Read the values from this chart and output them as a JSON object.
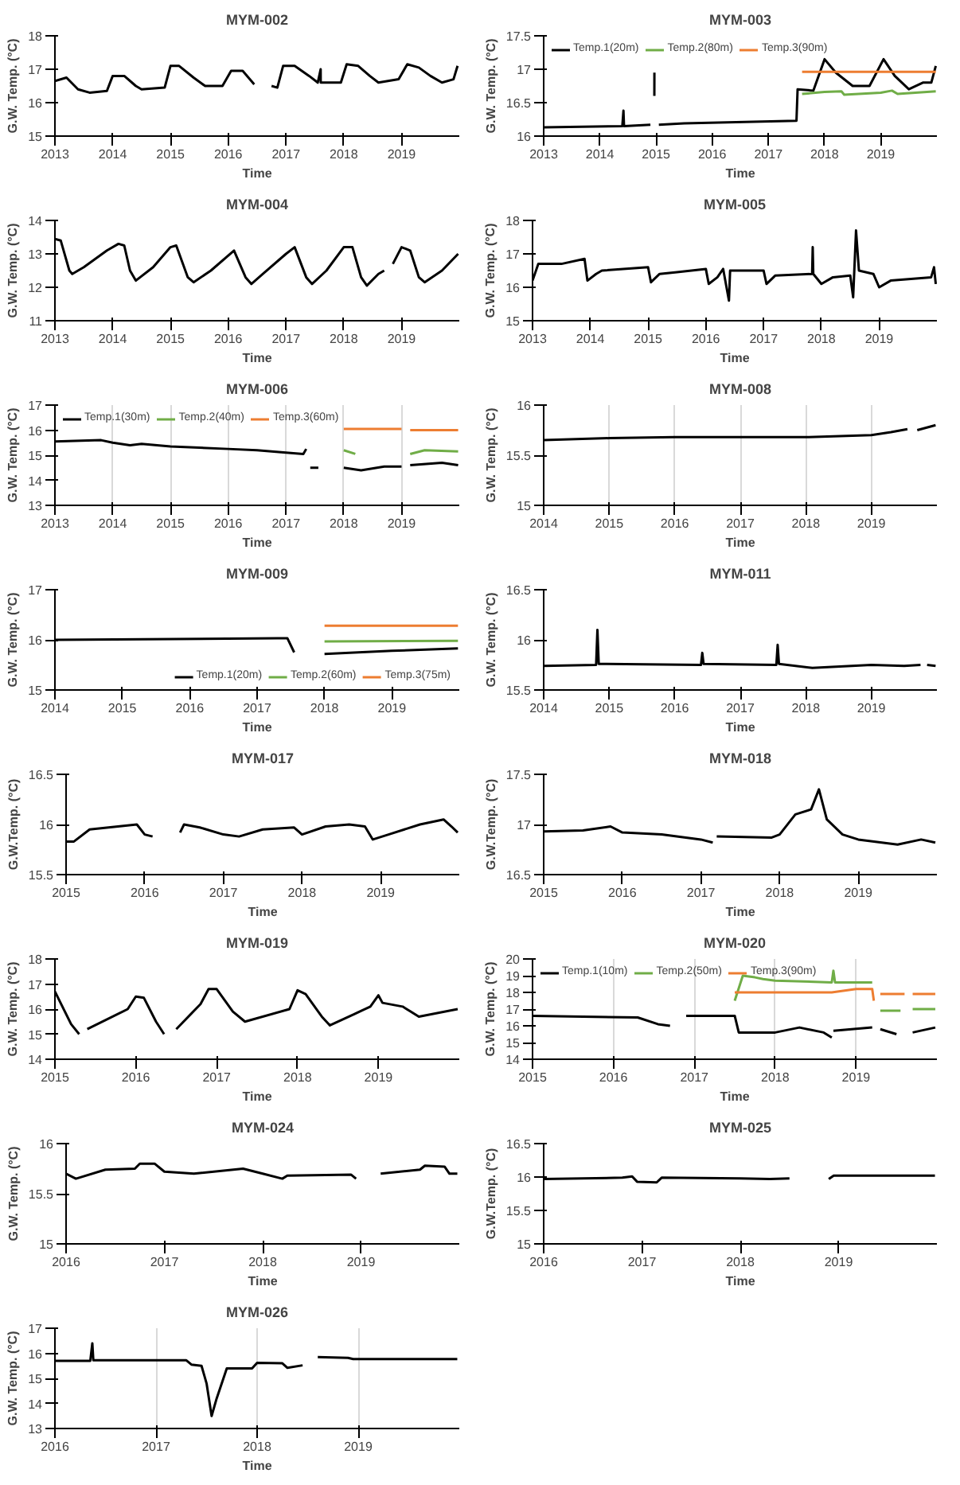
{
  "chart_data": [
    {
      "type": "line",
      "title": "MYM-002",
      "xlabel": "Time",
      "ylabel": "G.W. Temp. (°C)",
      "xlim": [
        2013,
        2020
      ],
      "xticks": [
        2013,
        2014,
        2015,
        2016,
        2017,
        2018,
        2019
      ],
      "ylim": [
        15,
        18
      ],
      "yticks": [
        15,
        16,
        17,
        18
      ],
      "grid": false,
      "series": [
        {
          "color": "#000000",
          "x": [
            2013.0,
            2013.2,
            2013.4,
            2013.6,
            2013.9,
            2014.0,
            2014.2,
            2014.4,
            2014.5,
            2014.9,
            2015.0,
            2015.15,
            2015.4,
            2015.6,
            2015.9,
            2016.05,
            2016.25,
            2016.45,
            2016.6,
            2016.75,
            2016.85,
            2016.95,
            2017.15,
            2017.4,
            2017.55,
            2017.6,
            2017.601,
            2017.61,
            2017.95,
            2018.05,
            2018.25,
            2018.45,
            2018.6,
            2018.95,
            2019.1,
            2019.3,
            2019.5,
            2019.7,
            2019.9,
            2019.97
          ],
          "values": [
            16.65,
            16.75,
            16.4,
            16.3,
            16.35,
            16.8,
            16.8,
            16.5,
            16.4,
            16.45,
            17.1,
            17.1,
            16.75,
            16.5,
            16.5,
            16.95,
            16.95,
            16.55,
            null,
            16.5,
            16.45,
            17.1,
            17.1,
            16.8,
            16.6,
            17.0,
            16.6,
            16.6,
            16.6,
            17.15,
            17.1,
            16.8,
            16.6,
            16.7,
            17.15,
            17.05,
            16.8,
            16.6,
            16.7,
            17.1
          ]
        }
      ]
    },
    {
      "type": "line",
      "title": "MYM-003",
      "xlabel": "Time",
      "ylabel": "G.W. Temp. (°C)",
      "xlim": [
        2013,
        2020
      ],
      "xticks": [
        2013,
        2014,
        2015,
        2016,
        2017,
        2018,
        2019
      ],
      "ylim": [
        16,
        17.5
      ],
      "yticks": [
        16,
        16.5,
        17,
        17.5
      ],
      "grid": false,
      "legend": "top left",
      "series": [
        {
          "name": "Temp.1(20m)",
          "color": "#000000",
          "x": [
            2013.0,
            2014.4,
            2014.42,
            2014.43,
            2014.9,
            2014.93,
            2014.97,
            2014.971,
            2014.99,
            2015.05,
            2015.5,
            2017.5,
            2017.52,
            2017.8,
            2018.0,
            2018.2,
            2018.5,
            2018.8,
            2019.05,
            2019.25,
            2019.5,
            2019.75,
            2019.9,
            2019.98
          ],
          "values": [
            16.13,
            16.15,
            16.38,
            16.15,
            16.17,
            null,
            16.6,
            16.95,
            null,
            16.17,
            16.19,
            16.23,
            16.7,
            16.68,
            17.15,
            16.95,
            16.75,
            16.75,
            17.15,
            16.9,
            16.7,
            16.8,
            16.8,
            17.05
          ]
        },
        {
          "name": "Temp.2(80m)",
          "color": "#70ad47",
          "x": [
            2017.6,
            2018.0,
            2018.3,
            2018.35,
            2019.0,
            2019.2,
            2019.3,
            2019.98
          ],
          "values": [
            16.63,
            16.66,
            16.67,
            16.62,
            16.65,
            16.68,
            16.63,
            16.67
          ]
        },
        {
          "name": "Temp.3(90m)",
          "color": "#ed7d31",
          "x": [
            2017.6,
            2019.98
          ],
          "values": [
            16.96,
            16.96
          ]
        }
      ]
    },
    {
      "type": "line",
      "title": "MYM-004",
      "xlabel": "Time",
      "ylabel": "G.W. Temp. (°C)",
      "xlim": [
        2013,
        2020
      ],
      "xticks": [
        2013,
        2014,
        2015,
        2016,
        2017,
        2018,
        2019
      ],
      "ylim": [
        11,
        14
      ],
      "yticks": [
        11,
        12,
        13,
        14
      ],
      "grid": false,
      "series": [
        {
          "color": "#000000",
          "x": [
            2013.0,
            2013.1,
            2013.25,
            2013.3,
            2013.5,
            2013.9,
            2014.1,
            2014.2,
            2014.3,
            2014.4,
            2014.7,
            2015.0,
            2015.1,
            2015.3,
            2015.4,
            2015.7,
            2016.1,
            2016.3,
            2016.4,
            2016.6,
            2017.0,
            2017.15,
            2017.35,
            2017.45,
            2017.7,
            2018.0,
            2018.15,
            2018.3,
            2018.4,
            2018.6,
            2018.7,
            2018.78,
            2018.85,
            2019.0,
            2019.15,
            2019.3,
            2019.4,
            2019.7,
            2019.98
          ],
          "values": [
            13.45,
            13.4,
            12.5,
            12.4,
            12.6,
            13.1,
            13.3,
            13.25,
            12.5,
            12.2,
            12.6,
            13.2,
            13.25,
            12.3,
            12.15,
            12.5,
            13.1,
            12.3,
            12.1,
            12.4,
            13.0,
            13.2,
            12.3,
            12.1,
            12.5,
            13.2,
            13.2,
            12.3,
            12.05,
            12.4,
            12.5,
            null,
            12.7,
            13.2,
            13.1,
            12.3,
            12.15,
            12.5,
            13.0
          ]
        }
      ]
    },
    {
      "type": "line",
      "title": "MYM-005",
      "xlabel": "Time",
      "ylabel": "G.W. Temp. (°C)",
      "xlim": [
        2013,
        2020
      ],
      "xticks": [
        2013,
        2014,
        2015,
        2016,
        2017,
        2018,
        2019
      ],
      "ylim": [
        15,
        18
      ],
      "yticks": [
        15,
        16,
        17,
        18
      ],
      "grid": false,
      "series": [
        {
          "color": "#000000",
          "x": [
            2013.0,
            2013.1,
            2013.5,
            2013.9,
            2013.95,
            2014.1,
            2014.2,
            2015.0,
            2015.05,
            2015.2,
            2015.5,
            2016.0,
            2016.05,
            2016.2,
            2016.3,
            2016.4,
            2016.42,
            2017.0,
            2017.05,
            2017.2,
            2017.84,
            2017.85,
            2017.86,
            2018.0,
            2018.2,
            2018.5,
            2018.55,
            2018.6,
            2018.65,
            2018.9,
            2019.0,
            2019.2,
            2019.9,
            2019.95,
            2019.98
          ],
          "values": [
            16.2,
            16.7,
            16.7,
            16.85,
            16.2,
            16.4,
            16.5,
            16.6,
            16.15,
            16.4,
            16.45,
            16.55,
            16.1,
            16.3,
            16.55,
            15.6,
            16.5,
            16.5,
            16.1,
            16.35,
            16.4,
            17.2,
            16.4,
            16.1,
            16.3,
            16.35,
            15.7,
            17.7,
            16.5,
            16.4,
            16.0,
            16.2,
            16.3,
            16.6,
            16.1
          ]
        }
      ]
    },
    {
      "type": "line",
      "title": "MYM-006",
      "xlabel": "Time",
      "ylabel": "G.W. Temp. (°C)",
      "xlim": [
        2013,
        2020
      ],
      "xticks": [
        2013,
        2014,
        2015,
        2016,
        2017,
        2018,
        2019
      ],
      "ylim": [
        13,
        17
      ],
      "yticks": [
        13,
        14,
        15,
        16,
        17
      ],
      "grid": "x",
      "legend": "top left",
      "series": [
        {
          "name": "Temp.1(30m)",
          "color": "#000000",
          "x": [
            2013.0,
            2013.8,
            2014.0,
            2014.3,
            2014.5,
            2015.0,
            2015.5,
            2016.0,
            2016.5,
            2017.0,
            2017.3,
            2017.35,
            2017.38,
            2017.42,
            2017.56,
            2017.7,
            2018.0,
            2018.3,
            2018.7,
            2019.0,
            2019.08,
            2019.15,
            2019.7,
            2019.98
          ],
          "values": [
            15.55,
            15.6,
            15.5,
            15.4,
            15.45,
            15.35,
            15.3,
            15.25,
            15.2,
            15.1,
            15.05,
            15.25,
            null,
            14.5,
            14.5,
            null,
            14.5,
            14.4,
            14.55,
            14.55,
            null,
            14.6,
            14.7,
            14.6
          ]
        },
        {
          "name": "Temp.2(40m)",
          "color": "#70ad47",
          "x": [
            2018.0,
            2018.2,
            2018.6,
            2019.15,
            2019.4,
            2019.98
          ],
          "values": [
            15.2,
            15.05,
            null,
            15.05,
            15.2,
            15.15
          ]
        },
        {
          "name": "Temp.3(60m)",
          "color": "#ed7d31",
          "x": [
            2018.0,
            2018.5,
            2019.0,
            2019.08,
            2019.15,
            2019.98
          ],
          "values": [
            16.05,
            16.05,
            16.05,
            null,
            16.0,
            16.0
          ]
        }
      ]
    },
    {
      "type": "line",
      "title": "MYM-008",
      "xlabel": "Time",
      "ylabel": "G.W. Temp. (°C)",
      "xlim": [
        2014,
        2020
      ],
      "xticks": [
        2014,
        2015,
        2016,
        2017,
        2018,
        2019
      ],
      "ylim": [
        15,
        16
      ],
      "yticks": [
        15,
        15.5,
        16
      ],
      "grid": "x",
      "series": [
        {
          "color": "#000000",
          "x": [
            2014.0,
            2015.0,
            2016.0,
            2017.0,
            2018.0,
            2019.0,
            2019.3,
            2019.55,
            2019.62,
            2019.7,
            2019.98
          ],
          "values": [
            15.65,
            15.67,
            15.68,
            15.68,
            15.68,
            15.7,
            15.73,
            15.76,
            null,
            15.75,
            15.8
          ]
        }
      ]
    },
    {
      "type": "line",
      "title": "MYM-009",
      "xlabel": "Time",
      "ylabel": "G.W. Temp. (°C)",
      "xlim": [
        2014,
        2020
      ],
      "xticks": [
        2014,
        2015,
        2016,
        2017,
        2018,
        2019
      ],
      "ylim": [
        15,
        17
      ],
      "yticks": [
        15,
        16,
        17
      ],
      "grid": false,
      "legend": "bottom right",
      "series": [
        {
          "name": "Temp.1(20m)",
          "color": "#000000",
          "x": [
            2014.0,
            2017.3,
            2017.45,
            2017.55,
            2017.8,
            2018.0,
            2019.0,
            2019.98
          ],
          "values": [
            16.0,
            16.03,
            16.03,
            15.75,
            null,
            15.72,
            15.78,
            15.83
          ]
        },
        {
          "name": "Temp.2(60m)",
          "color": "#70ad47",
          "x": [
            2018.0,
            2019.98
          ],
          "values": [
            15.97,
            15.98
          ]
        },
        {
          "name": "Temp.3(75m)",
          "color": "#ed7d31",
          "x": [
            2018.0,
            2019.98
          ],
          "values": [
            16.28,
            16.28
          ]
        }
      ]
    },
    {
      "type": "line",
      "title": "MYM-011",
      "xlabel": "Time",
      "ylabel": "G.W. Temp. (°C)",
      "xlim": [
        2014,
        2020
      ],
      "xticks": [
        2014,
        2015,
        2016,
        2017,
        2018,
        2019
      ],
      "ylim": [
        15.5,
        16.5
      ],
      "yticks": [
        15.5,
        16,
        16.5
      ],
      "grid": false,
      "series": [
        {
          "color": "#000000",
          "x": [
            2014.0,
            2014.8,
            2014.82,
            2014.84,
            2016.4,
            2016.42,
            2016.44,
            2017.55,
            2017.57,
            2017.59,
            2018.1,
            2019.0,
            2019.5,
            2019.75,
            2019.8,
            2019.85,
            2019.98
          ],
          "values": [
            15.74,
            15.75,
            16.1,
            15.76,
            15.75,
            15.87,
            15.76,
            15.75,
            15.95,
            15.76,
            15.72,
            15.75,
            15.74,
            15.75,
            null,
            15.75,
            15.74
          ]
        }
      ]
    },
    {
      "type": "line",
      "title": "MYM-017",
      "xlabel": "Time",
      "ylabel": "G.W.Temp. (°C)",
      "xlim": [
        2015,
        2020
      ],
      "xticks": [
        2015,
        2016,
        2017,
        2018,
        2019
      ],
      "ylim": [
        15.5,
        16.5
      ],
      "yticks": [
        15.5,
        16,
        16.5
      ],
      "grid": false,
      "series": [
        {
          "color": "#000000",
          "x": [
            2015.0,
            2015.1,
            2015.3,
            2015.9,
            2016.0,
            2016.1,
            2016.3,
            2016.45,
            2016.5,
            2016.7,
            2017.0,
            2017.2,
            2017.5,
            2017.9,
            2018.0,
            2018.3,
            2018.6,
            2018.8,
            2018.9,
            2019.1,
            2019.5,
            2019.8,
            2019.9,
            2019.98
          ],
          "values": [
            15.83,
            15.83,
            15.95,
            16.0,
            15.9,
            15.88,
            null,
            15.92,
            16.0,
            15.97,
            15.9,
            15.88,
            15.95,
            15.97,
            15.9,
            15.98,
            16.0,
            15.98,
            15.85,
            15.9,
            16.0,
            16.05,
            15.98,
            15.92
          ]
        }
      ]
    },
    {
      "type": "line",
      "title": "MYM-018",
      "xlabel": "Time",
      "ylabel": "G.W.Temp. (°C)",
      "xlim": [
        2015,
        2020
      ],
      "xticks": [
        2015,
        2016,
        2017,
        2018,
        2019
      ],
      "ylim": [
        16.5,
        17.5
      ],
      "yticks": [
        16.5,
        17,
        17.5
      ],
      "grid": false,
      "series": [
        {
          "color": "#000000",
          "x": [
            2015.0,
            2015.5,
            2015.85,
            2016.0,
            2016.5,
            2017.0,
            2017.15,
            2017.17,
            2017.2,
            2017.9,
            2018.0,
            2018.2,
            2018.4,
            2018.5,
            2018.6,
            2018.8,
            2019.0,
            2019.5,
            2019.8,
            2019.98
          ],
          "values": [
            16.93,
            16.94,
            16.98,
            16.92,
            16.9,
            16.85,
            16.82,
            null,
            16.88,
            16.87,
            16.9,
            17.1,
            17.15,
            17.35,
            17.05,
            16.9,
            16.85,
            16.8,
            16.85,
            16.82
          ]
        }
      ]
    },
    {
      "type": "line",
      "title": "MYM-019",
      "xlabel": "Time",
      "ylabel": "G.W. Temp. (°C)",
      "xlim": [
        2015,
        2020
      ],
      "xticks": [
        2015,
        2016,
        2017,
        2018,
        2019
      ],
      "ylim": [
        14,
        18
      ],
      "yticks": [
        14,
        15,
        16,
        17,
        18
      ],
      "grid": false,
      "series": [
        {
          "color": "#000000",
          "x": [
            2015.0,
            2015.2,
            2015.3,
            2015.35,
            2015.4,
            2015.9,
            2016.0,
            2016.1,
            2016.25,
            2016.35,
            2016.42,
            2016.5,
            2016.8,
            2016.9,
            2017.0,
            2017.2,
            2017.35,
            2017.9,
            2018.0,
            2018.1,
            2018.3,
            2018.4,
            2018.7,
            2018.9,
            2019.0,
            2019.05,
            2019.3,
            2019.5,
            2019.98
          ],
          "values": [
            16.7,
            15.4,
            15.0,
            null,
            15.2,
            16.0,
            16.5,
            16.45,
            15.5,
            15.0,
            null,
            15.2,
            16.2,
            16.8,
            16.8,
            15.9,
            15.5,
            16.0,
            16.75,
            16.6,
            15.7,
            15.35,
            15.8,
            16.1,
            16.55,
            16.25,
            16.1,
            15.7,
            16.0
          ]
        }
      ]
    },
    {
      "type": "line",
      "title": "MYM-020",
      "xlabel": "Time",
      "ylabel": "G.W. Temp. (°C)",
      "xlim": [
        2015,
        2020
      ],
      "xticks": [
        2015,
        2016,
        2017,
        2018,
        2019
      ],
      "ylim": [
        14,
        20
      ],
      "yticks": [
        14,
        15,
        16,
        17,
        18,
        19,
        20
      ],
      "grid": "x",
      "legend": "top left",
      "series": [
        {
          "name": "Temp.1(10m)",
          "color": "#000000",
          "x": [
            2015.0,
            2016.3,
            2016.55,
            2016.7,
            2016.8,
            2016.9,
            2017.5,
            2017.55,
            2018.0,
            2018.3,
            2018.6,
            2018.7,
            2018.71,
            2018.72,
            2019.2,
            2019.25,
            2019.3,
            2019.5,
            2019.6,
            2019.7,
            2019.98
          ],
          "values": [
            16.6,
            16.5,
            16.1,
            16.0,
            null,
            16.6,
            16.6,
            15.6,
            15.6,
            15.9,
            15.6,
            15.3,
            null,
            15.7,
            15.9,
            null,
            15.8,
            15.5,
            null,
            15.6,
            15.9
          ]
        },
        {
          "name": "Temp.2(50m)",
          "color": "#70ad47",
          "x": [
            2017.5,
            2017.6,
            2017.75,
            2017.85,
            2018.0,
            2018.7,
            2018.72,
            2018.74,
            2019.2,
            2019.25,
            2019.3,
            2019.55,
            2019.62,
            2019.7,
            2019.98
          ],
          "values": [
            17.5,
            19.0,
            18.9,
            18.8,
            18.7,
            18.6,
            19.3,
            18.6,
            18.6,
            null,
            16.9,
            16.9,
            null,
            17.0,
            17.0
          ]
        },
        {
          "name": "Temp.3(90m)",
          "color": "#ed7d31",
          "x": [
            2017.5,
            2018.7,
            2019.0,
            2019.2,
            2019.22,
            2019.25,
            2019.3,
            2019.6,
            2019.65,
            2019.7,
            2019.98
          ],
          "values": [
            18.0,
            18.0,
            18.2,
            18.2,
            17.5,
            null,
            17.9,
            17.9,
            null,
            17.9,
            17.9
          ]
        }
      ]
    },
    {
      "type": "line",
      "title": "MYM-024",
      "xlabel": "Time",
      "ylabel": "G.W. Temp. (°C)",
      "xlim": [
        2016,
        2020
      ],
      "xticks": [
        2016,
        2017,
        2018,
        2019
      ],
      "ylim": [
        15,
        16
      ],
      "yticks": [
        15,
        15.5,
        16
      ],
      "grid": false,
      "series": [
        {
          "color": "#000000",
          "x": [
            2016.0,
            2016.1,
            2016.4,
            2016.7,
            2016.75,
            2016.9,
            2017.0,
            2017.3,
            2017.8,
            2018.0,
            2018.2,
            2018.25,
            2018.9,
            2018.95,
            2019.1,
            2019.2,
            2019.6,
            2019.65,
            2019.85,
            2019.9,
            2019.98
          ],
          "values": [
            15.7,
            15.65,
            15.74,
            15.75,
            15.8,
            15.8,
            15.72,
            15.7,
            15.75,
            15.7,
            15.65,
            15.68,
            15.69,
            15.65,
            null,
            15.7,
            15.74,
            15.78,
            15.77,
            15.7,
            15.7
          ]
        }
      ]
    },
    {
      "type": "line",
      "title": "MYM-025",
      "xlabel": "Time",
      "ylabel": "G.W.Temp. (°C)",
      "xlim": [
        2016,
        2020
      ],
      "xticks": [
        2016,
        2017,
        2018,
        2019
      ],
      "ylim": [
        15,
        16.5
      ],
      "yticks": [
        15,
        15.5,
        16,
        16.5
      ],
      "grid": false,
      "series": [
        {
          "color": "#000000",
          "x": [
            2016.0,
            2016.8,
            2016.9,
            2016.95,
            2017.15,
            2017.2,
            2018.0,
            2018.3,
            2018.5,
            2018.7,
            2018.9,
            2018.95,
            2019.98
          ],
          "values": [
            15.97,
            15.99,
            16.01,
            15.93,
            15.92,
            15.99,
            15.98,
            15.97,
            15.98,
            null,
            15.97,
            16.02,
            16.02
          ]
        }
      ]
    },
    {
      "type": "line",
      "title": "MYM-026",
      "xlabel": "Time",
      "ylabel": "G.W. Temp. (°C)",
      "xlim": [
        2016,
        2020
      ],
      "xticks": [
        2016,
        2017,
        2018,
        2019
      ],
      "ylim": [
        13,
        17
      ],
      "yticks": [
        13,
        14,
        15,
        16,
        17
      ],
      "grid": "x",
      "series": [
        {
          "color": "#000000",
          "x": [
            2016.0,
            2016.35,
            2016.37,
            2016.38,
            2017.3,
            2017.35,
            2017.45,
            2017.5,
            2017.55,
            2017.6,
            2017.7,
            2017.95,
            2018.0,
            2018.25,
            2018.3,
            2018.45,
            2018.52,
            2018.6,
            2018.9,
            2018.95,
            2019.98
          ],
          "values": [
            15.7,
            15.7,
            16.4,
            15.72,
            15.72,
            15.55,
            15.5,
            14.8,
            13.5,
            14.2,
            15.4,
            15.4,
            15.62,
            15.6,
            15.42,
            15.52,
            null,
            15.85,
            15.82,
            15.77,
            15.77
          ]
        }
      ]
    }
  ]
}
